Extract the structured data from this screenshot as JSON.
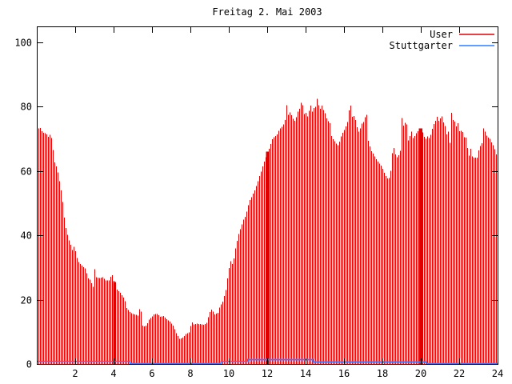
{
  "chart_data": {
    "type": "bar",
    "variant": "gnuplot-impulses",
    "title": "Freitag 2. Mai 2003",
    "background": "#ffffff",
    "frame_color": "#000000",
    "grid": false,
    "legend_position": "top-right-inside",
    "x_axis": {
      "range": [
        0,
        24
      ],
      "ticks": [
        2,
        4,
        6,
        8,
        10,
        12,
        14,
        16,
        18,
        20,
        22,
        24
      ],
      "label": ""
    },
    "y_axis": {
      "range": [
        0,
        105
      ],
      "ticks": [
        0,
        20,
        40,
        60,
        80,
        100
      ],
      "label": ""
    },
    "sample_interval_hours": 0.0833,
    "series": [
      {
        "name": "User",
        "color": "#e00000",
        "style": "impulses",
        "points": [
          [
            0.03,
            75
          ],
          [
            0.11,
            72.5
          ],
          [
            0.19,
            73.8
          ],
          [
            0.28,
            71.7
          ],
          [
            0.36,
            72.1
          ],
          [
            0.44,
            71.7
          ],
          [
            0.53,
            71.3
          ],
          [
            0.61,
            70.4
          ],
          [
            0.69,
            71.7
          ],
          [
            0.78,
            69.6
          ],
          [
            0.86,
            65
          ],
          [
            0.94,
            61.7
          ],
          [
            1.03,
            61.3
          ],
          [
            1.11,
            58.8
          ],
          [
            1.19,
            56
          ],
          [
            1.28,
            53
          ],
          [
            1.36,
            49
          ],
          [
            1.44,
            44
          ],
          [
            1.53,
            41.5
          ],
          [
            1.61,
            39.5
          ],
          [
            1.69,
            38
          ],
          [
            1.78,
            36.5
          ],
          [
            1.86,
            35
          ],
          [
            1.94,
            37
          ],
          [
            2.03,
            34
          ],
          [
            2.11,
            32.5
          ],
          [
            2.19,
            31.3
          ],
          [
            2.28,
            31
          ],
          [
            2.36,
            30.4
          ],
          [
            2.44,
            30
          ],
          [
            2.53,
            29.6
          ],
          [
            2.61,
            27.5
          ],
          [
            2.69,
            26.3
          ],
          [
            2.78,
            26.3
          ],
          [
            2.86,
            24.6
          ],
          [
            2.94,
            23.8
          ],
          [
            3.0,
            29.6
          ],
          [
            3.08,
            27
          ],
          [
            3.25,
            26.8
          ],
          [
            3.42,
            27
          ],
          [
            3.58,
            26
          ],
          [
            3.75,
            26
          ],
          [
            3.9,
            28
          ],
          [
            4.0,
            25.8
          ],
          [
            4.08,
            25.2
          ],
          [
            4.17,
            23
          ],
          [
            4.33,
            22.2
          ],
          [
            4.5,
            20.6
          ],
          [
            4.58,
            19.6
          ],
          [
            4.67,
            17.3
          ],
          [
            4.83,
            16.2
          ],
          [
            5.0,
            15.5
          ],
          [
            5.17,
            15.3
          ],
          [
            5.29,
            15
          ],
          [
            5.38,
            19.4
          ],
          [
            5.46,
            12.1
          ],
          [
            5.58,
            11.7
          ],
          [
            5.71,
            12.1
          ],
          [
            5.83,
            13.8
          ],
          [
            5.96,
            14.6
          ],
          [
            6.08,
            15.4
          ],
          [
            6.25,
            15.6
          ],
          [
            6.42,
            14.7
          ],
          [
            6.58,
            14.9
          ],
          [
            6.75,
            13.9
          ],
          [
            6.92,
            13.1
          ],
          [
            7.08,
            12
          ],
          [
            7.25,
            9.5
          ],
          [
            7.42,
            7.8
          ],
          [
            7.58,
            8.2
          ],
          [
            7.75,
            9.3
          ],
          [
            7.92,
            9.8
          ],
          [
            8.05,
            13.2
          ],
          [
            8.17,
            12.3
          ],
          [
            8.33,
            12.6
          ],
          [
            8.5,
            12.4
          ],
          [
            8.67,
            12.2
          ],
          [
            8.83,
            12.8
          ],
          [
            9.0,
            16.3
          ],
          [
            9.1,
            17
          ],
          [
            9.25,
            15.4
          ],
          [
            9.42,
            16
          ],
          [
            9.5,
            17.6
          ],
          [
            9.67,
            19.5
          ],
          [
            9.83,
            23
          ],
          [
            9.92,
            27
          ],
          [
            10.0,
            30
          ],
          [
            10.08,
            32
          ],
          [
            10.17,
            31
          ],
          [
            10.25,
            33
          ],
          [
            10.33,
            36
          ],
          [
            10.42,
            38.5
          ],
          [
            10.5,
            40.5
          ],
          [
            10.58,
            42
          ],
          [
            10.67,
            43.5
          ],
          [
            10.75,
            45
          ],
          [
            10.83,
            45.8
          ],
          [
            10.92,
            47.5
          ],
          [
            11.0,
            49.5
          ],
          [
            11.08,
            51
          ],
          [
            11.17,
            52
          ],
          [
            11.25,
            53
          ],
          [
            11.33,
            54
          ],
          [
            11.42,
            55.5
          ],
          [
            11.5,
            57
          ],
          [
            11.58,
            58.5
          ],
          [
            11.67,
            60
          ],
          [
            11.75,
            61.5
          ],
          [
            11.83,
            63
          ],
          [
            11.92,
            64.5
          ],
          [
            12.0,
            66
          ],
          [
            12.08,
            67
          ],
          [
            12.17,
            68.5
          ],
          [
            12.25,
            70
          ],
          [
            12.33,
            70.5
          ],
          [
            12.42,
            71
          ],
          [
            12.5,
            71.5
          ],
          [
            12.58,
            72.5
          ],
          [
            12.67,
            73.3
          ],
          [
            12.75,
            73.8
          ],
          [
            12.83,
            74.6
          ],
          [
            12.92,
            76
          ],
          [
            12.97,
            81.4
          ],
          [
            13.08,
            77.5
          ],
          [
            13.17,
            78.3
          ],
          [
            13.25,
            77.3
          ],
          [
            13.33,
            76.2
          ],
          [
            13.42,
            75.6
          ],
          [
            13.5,
            76.8
          ],
          [
            13.58,
            78.5
          ],
          [
            13.67,
            79.5
          ],
          [
            13.78,
            82
          ],
          [
            13.92,
            77.5
          ],
          [
            14.0,
            78.2
          ],
          [
            14.08,
            77
          ],
          [
            14.17,
            79
          ],
          [
            14.25,
            80.5
          ],
          [
            14.33,
            78.5
          ],
          [
            14.42,
            79.8
          ],
          [
            14.5,
            80
          ],
          [
            14.58,
            82.5
          ],
          [
            14.67,
            80.2
          ],
          [
            14.75,
            79.3
          ],
          [
            14.83,
            80.4
          ],
          [
            14.92,
            78.8
          ],
          [
            15.0,
            77.9
          ],
          [
            15.08,
            76.3
          ],
          [
            15.17,
            75.4
          ],
          [
            15.25,
            74.8
          ],
          [
            15.33,
            70.8
          ],
          [
            15.42,
            69.8
          ],
          [
            15.5,
            69.3
          ],
          [
            15.58,
            68.5
          ],
          [
            15.67,
            68
          ],
          [
            15.75,
            69.3
          ],
          [
            15.83,
            70.8
          ],
          [
            15.92,
            72
          ],
          [
            16.0,
            72.8
          ],
          [
            16.08,
            73.9
          ],
          [
            16.17,
            75.4
          ],
          [
            16.3,
            81.5
          ],
          [
            16.42,
            76.5
          ],
          [
            16.5,
            77.2
          ],
          [
            16.58,
            75.8
          ],
          [
            16.67,
            73.4
          ],
          [
            16.75,
            72.2
          ],
          [
            16.83,
            73.3
          ],
          [
            16.92,
            74.9
          ],
          [
            17.0,
            75.3
          ],
          [
            17.08,
            76.8
          ],
          [
            17.15,
            78.9
          ],
          [
            17.21,
            70
          ],
          [
            17.29,
            68.5
          ],
          [
            17.38,
            66.5
          ],
          [
            17.46,
            65.8
          ],
          [
            17.54,
            65
          ],
          [
            17.63,
            64
          ],
          [
            17.71,
            63.2
          ],
          [
            17.79,
            62.6
          ],
          [
            17.88,
            62
          ],
          [
            17.96,
            61.2
          ],
          [
            18.04,
            60
          ],
          [
            18.13,
            58.8
          ],
          [
            18.21,
            58
          ],
          [
            18.29,
            57.4
          ],
          [
            18.38,
            58.5
          ],
          [
            18.46,
            63
          ],
          [
            18.53,
            68.6
          ],
          [
            18.63,
            65.5
          ],
          [
            18.75,
            64.3
          ],
          [
            18.83,
            65
          ],
          [
            18.92,
            66.5
          ],
          [
            19.0,
            77.5
          ],
          [
            19.08,
            74
          ],
          [
            19.17,
            75.2
          ],
          [
            19.25,
            74.4
          ],
          [
            19.35,
            68
          ],
          [
            19.42,
            71.5
          ],
          [
            19.5,
            72.3
          ],
          [
            19.58,
            70.2
          ],
          [
            19.67,
            71
          ],
          [
            19.75,
            71.8
          ],
          [
            19.83,
            72.4
          ],
          [
            19.92,
            73
          ],
          [
            20.0,
            73.3
          ],
          [
            20.08,
            72
          ],
          [
            20.17,
            70.5
          ],
          [
            20.25,
            70
          ],
          [
            20.33,
            70.8
          ],
          [
            20.42,
            70.2
          ],
          [
            20.5,
            71.4
          ],
          [
            20.58,
            73.2
          ],
          [
            20.67,
            74.8
          ],
          [
            20.75,
            75.8
          ],
          [
            20.83,
            77
          ],
          [
            20.92,
            75.4
          ],
          [
            21.0,
            76.5
          ],
          [
            21.08,
            77
          ],
          [
            21.17,
            74.8
          ],
          [
            21.25,
            73.9
          ],
          [
            21.33,
            71.2
          ],
          [
            21.42,
            72.5
          ],
          [
            21.5,
            68.3
          ],
          [
            21.58,
            78.8
          ],
          [
            21.67,
            75.4
          ],
          [
            21.75,
            75.4
          ],
          [
            21.83,
            73.8
          ],
          [
            21.92,
            75
          ],
          [
            22.0,
            72.1
          ],
          [
            22.08,
            72.5
          ],
          [
            22.17,
            72.1
          ],
          [
            22.25,
            70.4
          ],
          [
            22.33,
            70.4
          ],
          [
            22.42,
            66.7
          ],
          [
            22.5,
            64.6
          ],
          [
            22.58,
            67.1
          ],
          [
            22.67,
            64.2
          ],
          [
            22.75,
            64.2
          ],
          [
            22.83,
            64.2
          ],
          [
            22.92,
            64.2
          ],
          [
            23.0,
            66.7
          ],
          [
            23.08,
            67.9
          ],
          [
            23.17,
            68.8
          ],
          [
            23.25,
            73.8
          ],
          [
            23.33,
            72.1
          ],
          [
            23.42,
            70.8
          ],
          [
            23.5,
            70.4
          ],
          [
            23.58,
            70
          ],
          [
            23.67,
            68.8
          ],
          [
            23.75,
            67.9
          ],
          [
            23.83,
            66.7
          ],
          [
            23.92,
            65
          ],
          [
            24.0,
            64.5
          ]
        ],
        "solid_bands": [
          [
            3.98,
            4.13,
            25.5
          ],
          [
            11.93,
            12.13,
            66
          ],
          [
            19.9,
            20.08,
            73.3
          ]
        ]
      },
      {
        "name": "Stuttgarter",
        "color": "#2e7eff",
        "style": "steps",
        "points": [
          [
            0,
            0.8
          ],
          [
            4.85,
            0.15
          ],
          [
            9.6,
            0.8
          ],
          [
            11.0,
            1.4
          ],
          [
            14.4,
            0.65
          ],
          [
            20.3,
            0.12
          ],
          [
            24,
            0.12
          ]
        ]
      }
    ]
  }
}
